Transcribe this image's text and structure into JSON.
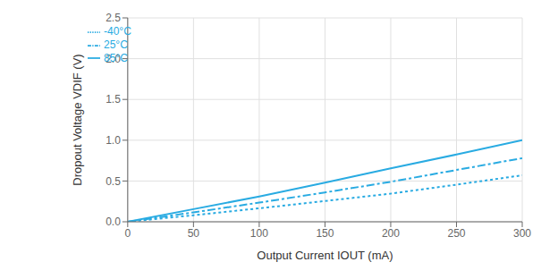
{
  "chart_data": {
    "type": "line",
    "x_label": "Output Current IOUT (mA)",
    "y_label": "Dropout Voltage VDIF (V)",
    "x": [
      0,
      50,
      100,
      150,
      200,
      250,
      300
    ],
    "series": [
      {
        "name": "85°C",
        "color": "#29ABE2",
        "line_style": "solid",
        "values": [
          0,
          0.155,
          0.31,
          0.48,
          0.655,
          0.825,
          1.0
        ]
      },
      {
        "name": "25°C",
        "color": "#29ABE2",
        "line_style": "dashdot",
        "values": [
          0,
          0.115,
          0.235,
          0.36,
          0.49,
          0.635,
          0.78
        ]
      },
      {
        "name": "-40°C",
        "color": "#29ABE2",
        "line_style": "dotted",
        "values": [
          0,
          0.08,
          0.165,
          0.255,
          0.345,
          0.455,
          0.57
        ]
      }
    ],
    "xlim": [
      0,
      300
    ],
    "ylim": [
      0,
      2.5
    ],
    "xticks": [
      0,
      50,
      100,
      150,
      200,
      250,
      300
    ],
    "yticks": [
      {
        "value": 0,
        "label": "0.0"
      },
      0.5,
      {
        "value": 1.0,
        "label": "1.0"
      },
      1.5,
      {
        "value": 2.0,
        "label": "2.0"
      },
      2.5
    ],
    "grid": true,
    "legend": "upper left"
  }
}
